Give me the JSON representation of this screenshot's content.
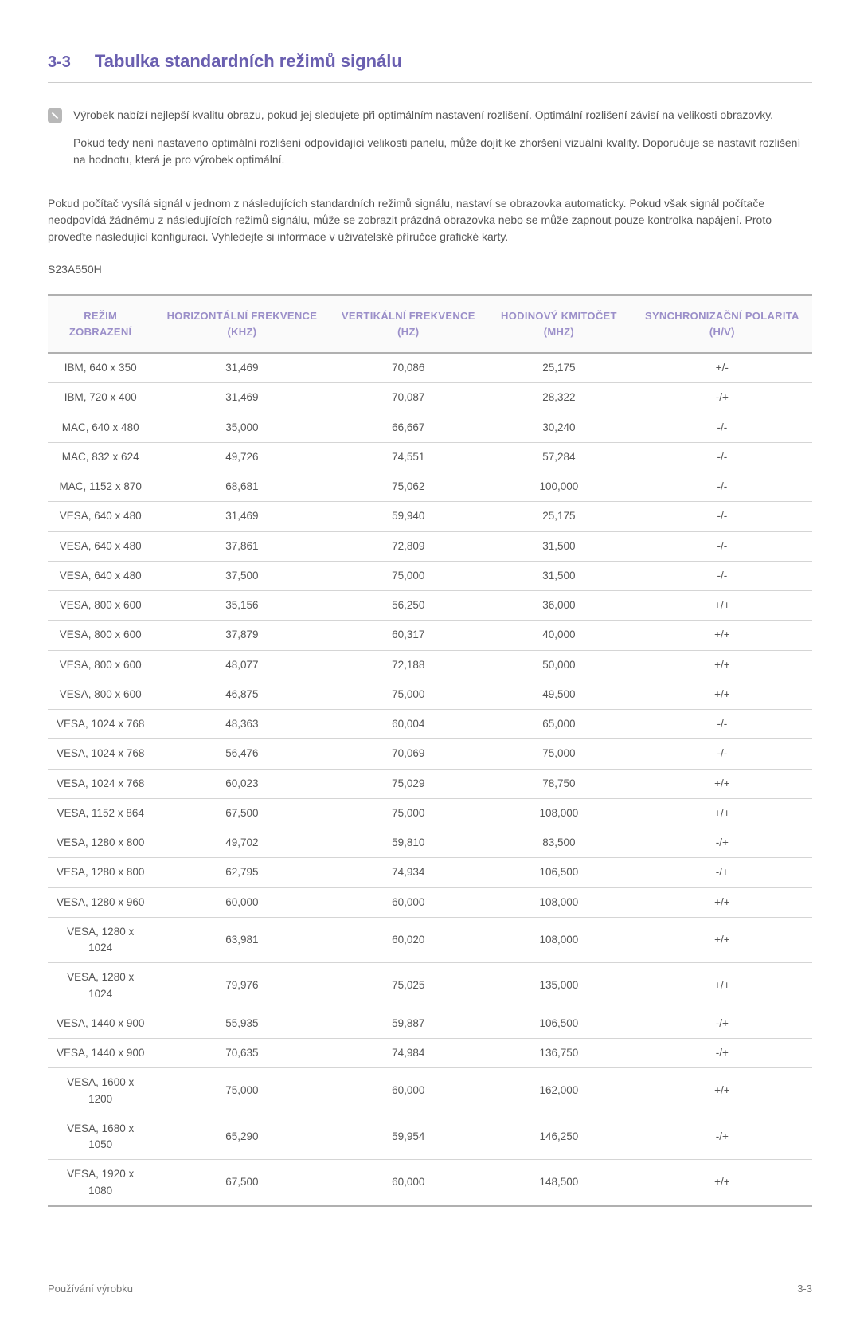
{
  "heading": {
    "number": "3-3",
    "title": "Tabulka standardních režimů signálu"
  },
  "note": {
    "para1": "Výrobek nabízí nejlepší kvalitu obrazu, pokud jej sledujete při optimálním nastavení rozlišení. Optimální rozlišení závisí na velikosti obrazovky.",
    "para2": "Pokud tedy není nastaveno optimální rozlišení odpovídající velikosti panelu, může dojít ke zhoršení vizuální kvality. Doporučuje se nastavit rozlišení na hodnotu, která je pro výrobek optimální."
  },
  "body_para": "Pokud počítač vysílá signál v jednom z následujících standardních režimů signálu, nastaví se obrazovka automaticky. Pokud však signál počítače neodpovídá žádnému z následujících režimů signálu, může se zobrazit prázdná obrazovka nebo se může zapnout pouze kontrolka napájení. Proto proveďte následující konfiguraci. Vyhledejte si informace v uživatelské příručce grafické karty.",
  "model": "S23A550H",
  "table": {
    "type": "table",
    "header_color": "#9b8fc9",
    "header_bg": "#fafafa",
    "border_color": "#b0b0b0",
    "row_border_color": "#d5d5d5",
    "text_color": "#555555",
    "columns": [
      "REŽIM ZOBRAZENÍ",
      "HORIZONTÁLNÍ FREKVENCE (KHZ)",
      "VERTIKÁLNÍ FREKVENCE (HZ)",
      "HODINOVÝ KMITOČET (MHZ)",
      "SYNCHRONIZAČNÍ POLARITA (H/V)"
    ],
    "rows": [
      [
        "IBM, 640 x 350",
        "31,469",
        "70,086",
        "25,175",
        "+/-"
      ],
      [
        "IBM, 720 x 400",
        "31,469",
        "70,087",
        "28,322",
        "-/+"
      ],
      [
        "MAC, 640 x 480",
        "35,000",
        "66,667",
        "30,240",
        "-/-"
      ],
      [
        "MAC, 832 x 624",
        "49,726",
        "74,551",
        "57,284",
        "-/-"
      ],
      [
        "MAC, 1152 x 870",
        "68,681",
        "75,062",
        "100,000",
        "-/-"
      ],
      [
        "VESA, 640 x 480",
        "31,469",
        "59,940",
        "25,175",
        "-/-"
      ],
      [
        "VESA, 640 x 480",
        "37,861",
        "72,809",
        "31,500",
        "-/-"
      ],
      [
        "VESA, 640 x 480",
        "37,500",
        "75,000",
        "31,500",
        "-/-"
      ],
      [
        "VESA, 800 x 600",
        "35,156",
        "56,250",
        "36,000",
        "+/+"
      ],
      [
        "VESA, 800 x 600",
        "37,879",
        "60,317",
        "40,000",
        "+/+"
      ],
      [
        "VESA, 800 x 600",
        "48,077",
        "72,188",
        "50,000",
        "+/+"
      ],
      [
        "VESA, 800 x 600",
        "46,875",
        "75,000",
        "49,500",
        "+/+"
      ],
      [
        "VESA, 1024 x 768",
        "48,363",
        "60,004",
        "65,000",
        "-/-"
      ],
      [
        "VESA, 1024 x 768",
        "56,476",
        "70,069",
        "75,000",
        "-/-"
      ],
      [
        "VESA, 1024 x 768",
        "60,023",
        "75,029",
        "78,750",
        "+/+"
      ],
      [
        "VESA, 1152 x 864",
        "67,500",
        "75,000",
        "108,000",
        "+/+"
      ],
      [
        "VESA, 1280 x 800",
        "49,702",
        "59,810",
        "83,500",
        "-/+"
      ],
      [
        "VESA, 1280 x 800",
        "62,795",
        "74,934",
        "106,500",
        "-/+"
      ],
      [
        "VESA, 1280 x 960",
        "60,000",
        "60,000",
        "108,000",
        "+/+"
      ],
      [
        "VESA, 1280 x 1024",
        "63,981",
        "60,020",
        "108,000",
        "+/+"
      ],
      [
        "VESA, 1280 x 1024",
        "79,976",
        "75,025",
        "135,000",
        "+/+"
      ],
      [
        "VESA, 1440 x 900",
        "55,935",
        "59,887",
        "106,500",
        "-/+"
      ],
      [
        "VESA, 1440 x 900",
        "70,635",
        "74,984",
        "136,750",
        "-/+"
      ],
      [
        "VESA, 1600 x 1200",
        "75,000",
        "60,000",
        "162,000",
        "+/+"
      ],
      [
        "VESA, 1680 x 1050",
        "65,290",
        "59,954",
        "146,250",
        "-/+"
      ],
      [
        "VESA, 1920 x 1080",
        "67,500",
        "60,000",
        "148,500",
        "+/+"
      ]
    ]
  },
  "footer": {
    "left": "Používání výrobku",
    "right": "3-3"
  }
}
